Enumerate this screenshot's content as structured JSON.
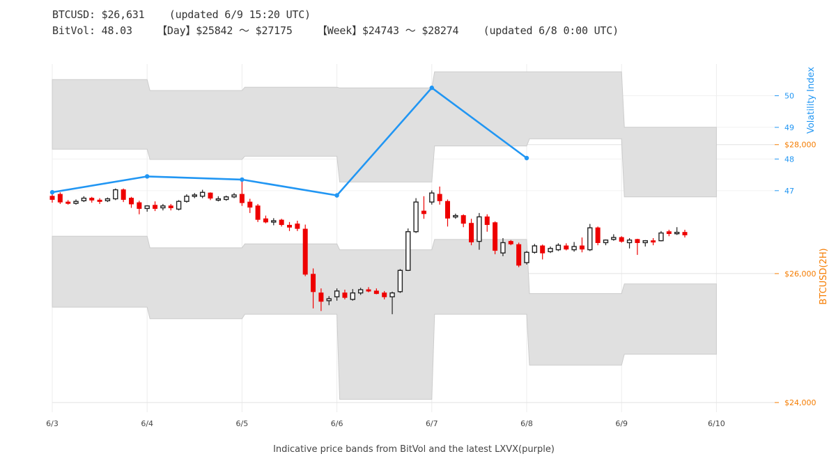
{
  "header": {
    "line1": "BTCUSD: $26,631    (updated 6/9 15:20 UTC)",
    "line2": "BitVol: 48.03    【Day】$25842 〜 $27175    【Week】$24743 〜 $28274    (updated 6/8 0:00 UTC)"
  },
  "colors": {
    "vol_line": "#2196f3",
    "price_axis": "#f57c00",
    "up_candle": "#222222",
    "down_candle": "#ee0000",
    "band_fill": "#e0e0e0",
    "band_stroke": "#cccccc",
    "grid": "#ececec"
  },
  "chart_data": {
    "type": "candlestick+line+band",
    "caption": "Indicative price bands from BitVol and the latest LXVX(purple)",
    "x_ticks": [
      "6/3",
      "6/4",
      "6/5",
      "6/6",
      "6/7",
      "6/8",
      "6/9",
      "6/10"
    ],
    "x_range_days": [
      0,
      7.6
    ],
    "y_price_label": "BTCUSD(2H)",
    "y_price_ticks": [
      "$24,000",
      "$26,000",
      "$28,000"
    ],
    "y_price_tick_values": [
      24000,
      26000,
      28000
    ],
    "y_price_range": [
      23850,
      29250
    ],
    "y_vol_label": "Volatility Index",
    "y_vol_ticks": [
      "47",
      "48",
      "49",
      "50"
    ],
    "y_vol_tick_values": [
      47,
      48,
      49,
      50
    ],
    "y_vol_range": [
      40,
      51
    ],
    "volatility_series": {
      "x_days": [
        0,
        1,
        2,
        3,
        4,
        5
      ],
      "values": [
        46.95,
        47.45,
        47.35,
        46.85,
        50.25,
        48.03
      ]
    },
    "bands": [
      {
        "from_day": 0,
        "to_day": 1,
        "outer_hi": 29010,
        "inner_hi": 27930,
        "inner_lo": 26580,
        "outer_lo": 25480
      },
      {
        "from_day": 1,
        "to_day": 2,
        "outer_hi": 28840,
        "inner_hi": 27770,
        "inner_lo": 26400,
        "outer_lo": 25300
      },
      {
        "from_day": 2,
        "to_day": 3,
        "outer_hi": 28890,
        "inner_hi": 27820,
        "inner_lo": 26460,
        "outer_lo": 25370
      },
      {
        "from_day": 3,
        "to_day": 4,
        "outer_hi": 28880,
        "inner_hi": 27420,
        "inner_lo": 26370,
        "outer_lo": 24050
      },
      {
        "from_day": 4,
        "to_day": 5,
        "outer_hi": 29130,
        "inner_hi": 27980,
        "inner_lo": 26530,
        "outer_lo": 25370
      },
      {
        "from_day": 5,
        "to_day": 6,
        "outer_hi": 29130,
        "inner_hi": 28090,
        "inner_lo": 25690,
        "outer_lo": 24580
      },
      {
        "from_day": 6,
        "to_day": 7,
        "outer_hi": 28270,
        "inner_hi": 27190,
        "inner_lo": 25840,
        "outer_lo": 24750
      }
    ],
    "candles": [
      [
        27200,
        27250,
        27100,
        27150
      ],
      [
        27230,
        27260,
        27080,
        27110
      ],
      [
        27110,
        27140,
        27070,
        27100
      ],
      [
        27090,
        27150,
        27070,
        27120
      ],
      [
        27130,
        27200,
        27110,
        27170
      ],
      [
        27170,
        27190,
        27100,
        27140
      ],
      [
        27140,
        27170,
        27080,
        27120
      ],
      [
        27130,
        27180,
        27110,
        27160
      ],
      [
        27160,
        27320,
        27140,
        27300
      ],
      [
        27300,
        27320,
        27110,
        27150
      ],
      [
        27170,
        27190,
        27020,
        27080
      ],
      [
        27100,
        27130,
        26920,
        27010
      ],
      [
        27010,
        27060,
        26960,
        27050
      ],
      [
        27060,
        27120,
        26970,
        27010
      ],
      [
        27020,
        27080,
        26980,
        27050
      ],
      [
        27050,
        27080,
        26980,
        27020
      ],
      [
        27000,
        27140,
        26980,
        27120
      ],
      [
        27120,
        27230,
        27100,
        27200
      ],
      [
        27210,
        27250,
        27170,
        27220
      ],
      [
        27200,
        27300,
        27170,
        27260
      ],
      [
        27250,
        27260,
        27140,
        27170
      ],
      [
        27140,
        27200,
        27120,
        27160
      ],
      [
        27150,
        27210,
        27130,
        27190
      ],
      [
        27190,
        27250,
        27170,
        27220
      ],
      [
        27230,
        27450,
        27050,
        27100
      ],
      [
        27110,
        27160,
        26940,
        27030
      ],
      [
        27050,
        27080,
        26800,
        26840
      ],
      [
        26850,
        26900,
        26780,
        26800
      ],
      [
        26800,
        26860,
        26750,
        26820
      ],
      [
        26830,
        26850,
        26730,
        26760
      ],
      [
        26750,
        26800,
        26660,
        26720
      ],
      [
        26770,
        26820,
        26660,
        26700
      ],
      [
        26690,
        26760,
        25960,
        25990
      ],
      [
        25990,
        26080,
        25460,
        25720
      ],
      [
        25700,
        25770,
        25420,
        25570
      ],
      [
        25580,
        25650,
        25510,
        25610
      ],
      [
        25640,
        25770,
        25580,
        25730
      ],
      [
        25700,
        25750,
        25600,
        25630
      ],
      [
        25600,
        25760,
        25580,
        25700
      ],
      [
        25700,
        25780,
        25670,
        25750
      ],
      [
        25750,
        25790,
        25710,
        25730
      ],
      [
        25730,
        25770,
        25680,
        25690
      ],
      [
        25700,
        25730,
        25600,
        25640
      ],
      [
        25640,
        25720,
        25370,
        25700
      ],
      [
        25720,
        26070,
        25700,
        26050
      ],
      [
        26050,
        26700,
        26040,
        26650
      ],
      [
        26650,
        27170,
        26630,
        27110
      ],
      [
        26970,
        27200,
        26850,
        26930
      ],
      [
        27110,
        27290,
        27070,
        27250
      ],
      [
        27230,
        27350,
        27070,
        27130
      ],
      [
        27120,
        27150,
        26730,
        26860
      ],
      [
        26880,
        26930,
        26850,
        26900
      ],
      [
        26900,
        26920,
        26720,
        26780
      ],
      [
        26780,
        26850,
        26440,
        26490
      ],
      [
        26500,
        26940,
        26370,
        26880
      ],
      [
        26880,
        26920,
        26650,
        26760
      ],
      [
        26790,
        26810,
        26300,
        26360
      ],
      [
        26320,
        26550,
        26270,
        26480
      ],
      [
        26500,
        26520,
        26440,
        26460
      ],
      [
        26450,
        26480,
        26100,
        26130
      ],
      [
        26170,
        26350,
        26140,
        26330
      ],
      [
        26330,
        26460,
        26310,
        26430
      ],
      [
        26430,
        26450,
        26220,
        26320
      ],
      [
        26340,
        26420,
        26320,
        26390
      ],
      [
        26370,
        26470,
        26350,
        26440
      ],
      [
        26430,
        26470,
        26360,
        26380
      ],
      [
        26370,
        26490,
        26340,
        26420
      ],
      [
        26430,
        26560,
        26330,
        26380
      ],
      [
        26370,
        26770,
        26350,
        26710
      ],
      [
        26710,
        26730,
        26440,
        26480
      ],
      [
        26480,
        26530,
        26440,
        26520
      ],
      [
        26530,
        26610,
        26510,
        26560
      ],
      [
        26560,
        26580,
        26480,
        26500
      ],
      [
        26480,
        26550,
        26390,
        26520
      ],
      [
        26530,
        26540,
        26290,
        26480
      ],
      [
        26480,
        26520,
        26420,
        26510
      ],
      [
        26510,
        26550,
        26440,
        26500
      ],
      [
        26510,
        26660,
        26500,
        26630
      ],
      [
        26650,
        26680,
        26580,
        26620
      ],
      [
        26620,
        26720,
        26600,
        26640
      ],
      [
        26640,
        26680,
        26560,
        26600
      ]
    ]
  }
}
